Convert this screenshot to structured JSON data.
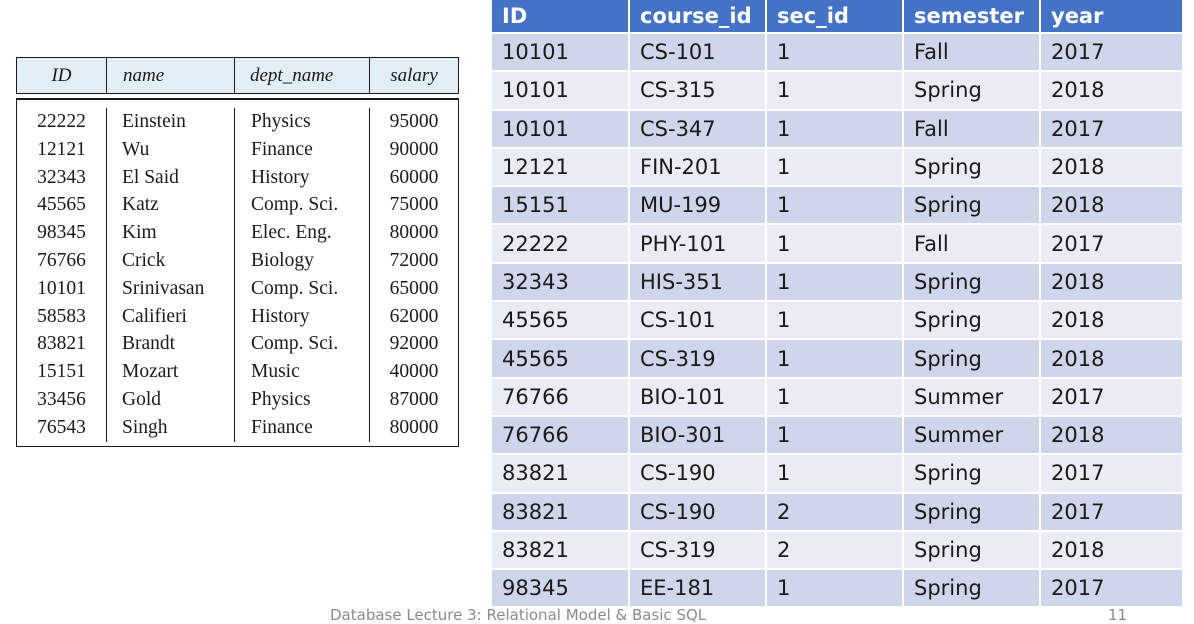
{
  "instructor": {
    "columns": [
      "ID",
      "name",
      "dept_name",
      "salary"
    ],
    "rows": [
      [
        "22222",
        "Einstein",
        "Physics",
        "95000"
      ],
      [
        "12121",
        "Wu",
        "Finance",
        "90000"
      ],
      [
        "32343",
        "El Said",
        "History",
        "60000"
      ],
      [
        "45565",
        "Katz",
        "Comp. Sci.",
        "75000"
      ],
      [
        "98345",
        "Kim",
        "Elec. Eng.",
        "80000"
      ],
      [
        "76766",
        "Crick",
        "Biology",
        "72000"
      ],
      [
        "10101",
        "Srinivasan",
        "Comp. Sci.",
        "65000"
      ],
      [
        "58583",
        "Califieri",
        "History",
        "62000"
      ],
      [
        "83821",
        "Brandt",
        "Comp. Sci.",
        "92000"
      ],
      [
        "15151",
        "Mozart",
        "Music",
        "40000"
      ],
      [
        "33456",
        "Gold",
        "Physics",
        "87000"
      ],
      [
        "76543",
        "Singh",
        "Finance",
        "80000"
      ]
    ]
  },
  "teaches": {
    "columns": [
      "ID",
      "course_id",
      "sec_id",
      "semester",
      "year"
    ],
    "rows": [
      [
        "10101",
        "CS-101",
        "1",
        "Fall",
        "2017"
      ],
      [
        "10101",
        "CS-315",
        "1",
        "Spring",
        "2018"
      ],
      [
        "10101",
        "CS-347",
        "1",
        "Fall",
        "2017"
      ],
      [
        "12121",
        "FIN-201",
        "1",
        "Spring",
        "2018"
      ],
      [
        "15151",
        "MU-199",
        "1",
        "Spring",
        "2018"
      ],
      [
        "22222",
        "PHY-101",
        "1",
        "Fall",
        "2017"
      ],
      [
        "32343",
        "HIS-351",
        "1",
        "Spring",
        "2018"
      ],
      [
        "45565",
        "CS-101",
        "1",
        "Spring",
        "2018"
      ],
      [
        "45565",
        "CS-319",
        "1",
        "Spring",
        "2018"
      ],
      [
        "76766",
        "BIO-101",
        "1",
        "Summer",
        "2017"
      ],
      [
        "76766",
        "BIO-301",
        "1",
        "Summer",
        "2018"
      ],
      [
        "83821",
        "CS-190",
        "1",
        "Spring",
        "2017"
      ],
      [
        "83821",
        "CS-190",
        "2",
        "Spring",
        "2017"
      ],
      [
        "83821",
        "CS-319",
        "2",
        "Spring",
        "2018"
      ],
      [
        "98345",
        "EE-181",
        "1",
        "Spring",
        "2017"
      ]
    ]
  },
  "footer": {
    "text": "Database Lecture 3: Relational Model & Basic SQL",
    "page": "11"
  },
  "colors": {
    "header_bg": "#4472c4",
    "row_odd": "#cfd5ea",
    "row_even": "#e9ebf5",
    "instructor_header_bg": "#e2edf6"
  }
}
